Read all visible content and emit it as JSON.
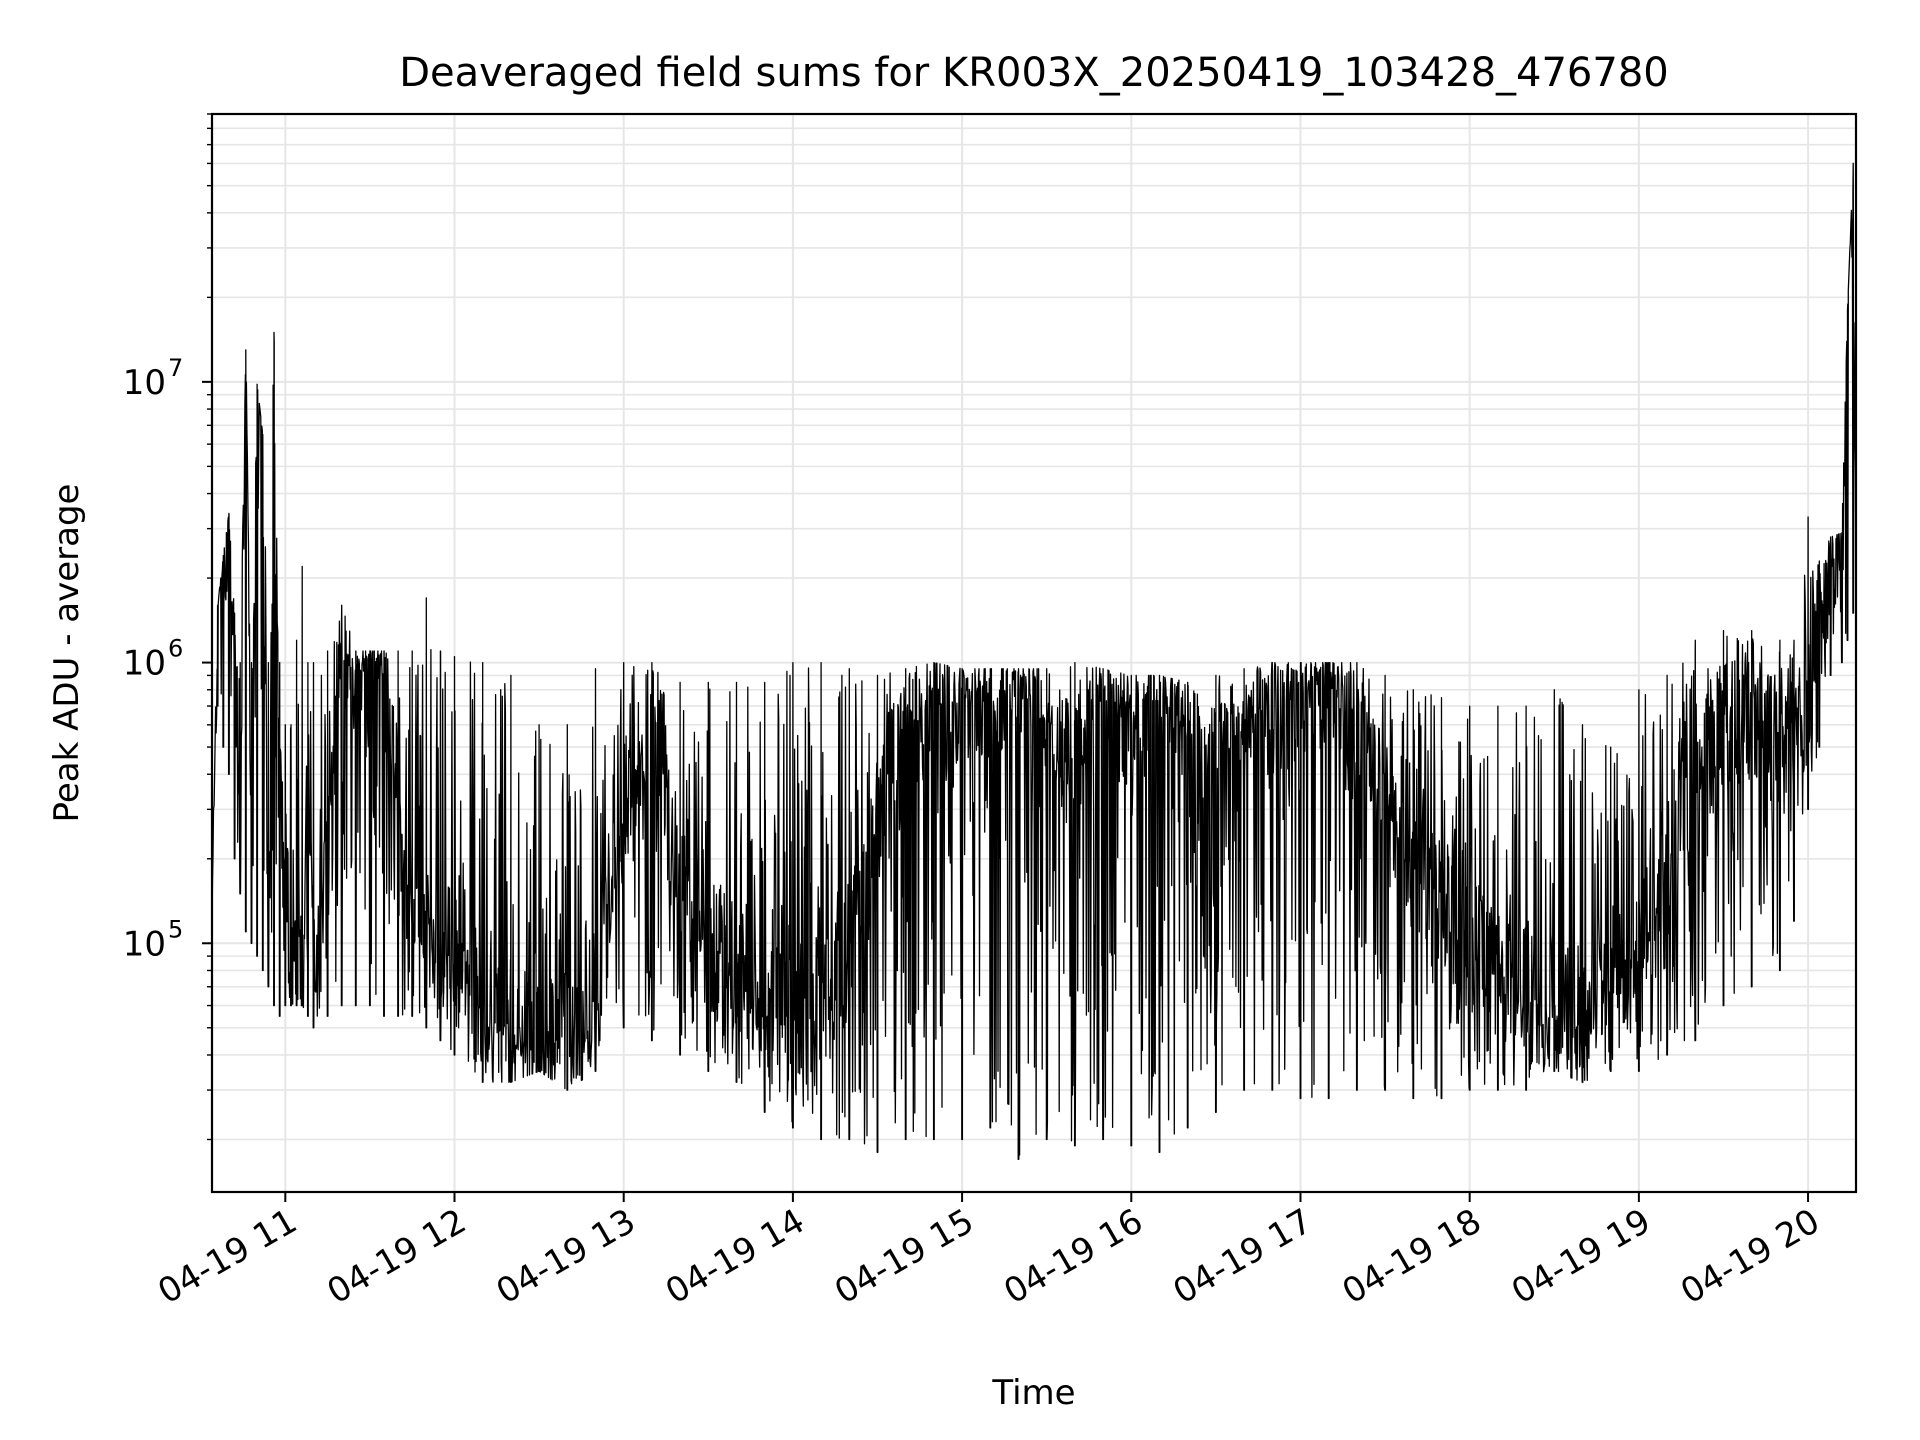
{
  "chart_data": {
    "type": "line",
    "title": "Deaveraged field sums for KR003X_20250419_103428_476780",
    "xlabel": "Time",
    "ylabel": "Peak ADU - average",
    "yscale": "log",
    "ylim": [
      13000,
      90000000
    ],
    "xlim": [
      "2025-04-19 10:34",
      "2025-04-19 20:17"
    ],
    "grid": true,
    "line_color": "#000000",
    "x_ticks": [
      {
        "t": "2025-04-19 11:00",
        "label": "04-19 11"
      },
      {
        "t": "2025-04-19 12:00",
        "label": "04-19 12"
      },
      {
        "t": "2025-04-19 13:00",
        "label": "04-19 13"
      },
      {
        "t": "2025-04-19 14:00",
        "label": "04-19 14"
      },
      {
        "t": "2025-04-19 15:00",
        "label": "04-19 15"
      },
      {
        "t": "2025-04-19 16:00",
        "label": "04-19 16"
      },
      {
        "t": "2025-04-19 17:00",
        "label": "04-19 17"
      },
      {
        "t": "2025-04-19 18:00",
        "label": "04-19 18"
      },
      {
        "t": "2025-04-19 19:00",
        "label": "04-19 19"
      },
      {
        "t": "2025-04-19 20:00",
        "label": "04-19 20"
      }
    ],
    "y_ticks": [
      {
        "value": 100000,
        "base": "10",
        "exp": "5"
      },
      {
        "value": 1000000,
        "base": "10",
        "exp": "6"
      },
      {
        "value": 10000000,
        "base": "10",
        "exp": "7"
      }
    ],
    "series": [
      {
        "x": [
          "2025-04-19 10:34",
          "2025-04-19 10:36",
          "2025-04-19 10:38",
          "2025-04-19 10:40",
          "2025-04-19 10:42",
          "2025-04-19 10:44",
          "2025-04-19 10:46",
          "2025-04-19 10:48",
          "2025-04-19 10:50",
          "2025-04-19 10:52",
          "2025-04-19 10:54",
          "2025-04-19 10:56",
          "2025-04-19 10:58",
          "2025-04-19 11:00",
          "2025-04-19 11:02",
          "2025-04-19 11:04",
          "2025-04-19 11:06",
          "2025-04-19 11:08",
          "2025-04-19 11:10",
          "2025-04-19 11:15",
          "2025-04-19 11:20",
          "2025-04-19 11:25",
          "2025-04-19 11:30",
          "2025-04-19 11:35",
          "2025-04-19 11:40",
          "2025-04-19 11:45",
          "2025-04-19 11:50",
          "2025-04-19 11:55",
          "2025-04-19 12:00",
          "2025-04-19 12:10",
          "2025-04-19 12:20",
          "2025-04-19 12:30",
          "2025-04-19 12:40",
          "2025-04-19 12:50",
          "2025-04-19 13:00",
          "2025-04-19 13:10",
          "2025-04-19 13:20",
          "2025-04-19 13:30",
          "2025-04-19 13:40",
          "2025-04-19 13:50",
          "2025-04-19 14:00",
          "2025-04-19 14:10",
          "2025-04-19 14:20",
          "2025-04-19 14:30",
          "2025-04-19 14:40",
          "2025-04-19 14:50",
          "2025-04-19 15:00",
          "2025-04-19 15:10",
          "2025-04-19 15:20",
          "2025-04-19 15:30",
          "2025-04-19 15:40",
          "2025-04-19 15:50",
          "2025-04-19 16:00",
          "2025-04-19 16:10",
          "2025-04-19 16:20",
          "2025-04-19 16:30",
          "2025-04-19 16:40",
          "2025-04-19 16:50",
          "2025-04-19 17:00",
          "2025-04-19 17:10",
          "2025-04-19 17:20",
          "2025-04-19 17:30",
          "2025-04-19 17:40",
          "2025-04-19 17:50",
          "2025-04-19 18:00",
          "2025-04-19 18:10",
          "2025-04-19 18:20",
          "2025-04-19 18:30",
          "2025-04-19 18:40",
          "2025-04-19 18:50",
          "2025-04-19 19:00",
          "2025-04-19 19:10",
          "2025-04-19 19:20",
          "2025-04-19 19:30",
          "2025-04-19 19:40",
          "2025-04-19 19:50",
          "2025-04-19 19:55",
          "2025-04-19 20:00",
          "2025-04-19 20:04",
          "2025-04-19 20:08",
          "2025-04-19 20:12",
          "2025-04-19 20:14",
          "2025-04-19 20:16",
          "2025-04-19 20:17"
        ],
        "y": [
          140000,
          1500000,
          2200000,
          3400000,
          800000,
          400000,
          13000000,
          200000,
          9800000,
          6500000,
          100000,
          15000000,
          300000,
          200000,
          100000,
          80000,
          70000,
          600000,
          100000,
          200000,
          1000000,
          900000,
          1000000,
          800000,
          250000,
          150000,
          100000,
          100000,
          90000,
          60000,
          50000,
          40000,
          50000,
          60000,
          300000,
          600000,
          150000,
          100000,
          80000,
          60000,
          50000,
          60000,
          90000,
          250000,
          500000,
          700000,
          700000,
          800000,
          900000,
          600000,
          500000,
          700000,
          600000,
          800000,
          500000,
          400000,
          500000,
          600000,
          800000,
          900000,
          500000,
          300000,
          200000,
          150000,
          100000,
          80000,
          70000,
          60000,
          50000,
          80000,
          100000,
          200000,
          400000,
          600000,
          700000,
          500000,
          500000,
          700000,
          1500000,
          2000000,
          2500000,
          60000000,
          35000000,
          3000000
        ],
        "y_envelope_low": [
          140000,
          700000,
          500000,
          400000,
          200000,
          150000,
          110000,
          100000,
          90000,
          80000,
          70000,
          60000,
          55000,
          60000,
          60000,
          60000,
          60000,
          55000,
          50000,
          55000,
          60000,
          60000,
          60000,
          55000,
          55000,
          55000,
          50000,
          45000,
          40000,
          32000,
          32000,
          35000,
          30000,
          35000,
          50000,
          45000,
          40000,
          35000,
          32000,
          25000,
          22000,
          20000,
          20000,
          18000,
          20000,
          20000,
          20000,
          22000,
          17000,
          20000,
          19000,
          20000,
          19000,
          18000,
          22000,
          25000,
          30000,
          30000,
          28000,
          28000,
          30000,
          30000,
          28000,
          28000,
          30000,
          30000,
          30000,
          35000,
          32000,
          35000,
          35000,
          40000,
          45000,
          60000,
          70000,
          80000,
          120000,
          300000,
          500000,
          900000,
          1000000,
          1200000,
          1500000,
          2500000
        ],
        "y_envelope_high": [
          160000,
          1600000,
          2400000,
          3400000,
          1500000,
          1000000,
          13000000,
          1000000,
          9800000,
          6500000,
          1000000,
          15000000,
          1000000,
          600000,
          600000,
          1200000,
          2200000,
          1000000,
          1000000,
          1100000,
          1600000,
          1100000,
          1100000,
          1100000,
          1100000,
          1100000,
          1700000,
          1100000,
          1050000,
          1000000,
          900000,
          600000,
          600000,
          950000,
          1000000,
          1000000,
          850000,
          850000,
          850000,
          850000,
          1000000,
          1000000,
          950000,
          900000,
          950000,
          1000000,
          950000,
          950000,
          950000,
          950000,
          1000000,
          950000,
          900000,
          900000,
          850000,
          900000,
          950000,
          1000000,
          1000000,
          1000000,
          1000000,
          900000,
          800000,
          750000,
          700000,
          700000,
          700000,
          800000,
          600000,
          500000,
          800000,
          900000,
          1200000,
          1300000,
          1300000,
          1200000,
          1200000,
          3300000,
          2300000,
          2800000,
          2900000,
          18000000,
          60000000,
          3500000
        ]
      }
    ]
  }
}
